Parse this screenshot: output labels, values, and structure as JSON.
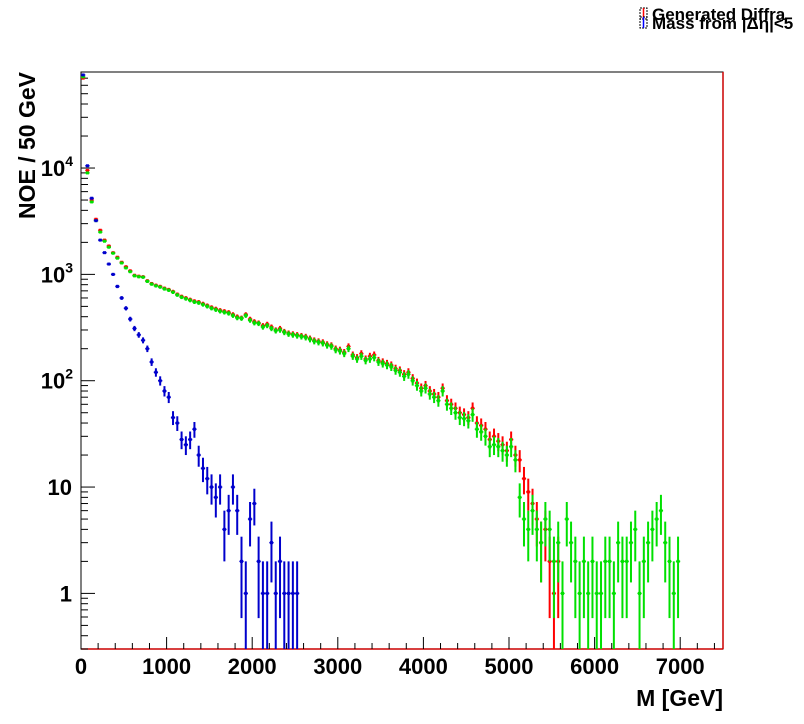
{
  "chart_data": {
    "type": "scatter",
    "title": "",
    "xlabel": "M [GeV]",
    "ylabel": "NOE / 50 GeV",
    "xlim": [
      0,
      7500
    ],
    "ylim": [
      0.3,
      80000
    ],
    "y_scale": "log",
    "grid": false,
    "legend_position": "top-right",
    "x_ticks": [
      {
        "v": 0,
        "label": "0"
      },
      {
        "v": 1000,
        "label": "1000"
      },
      {
        "v": 2000,
        "label": "2000"
      },
      {
        "v": 3000,
        "label": "3000"
      },
      {
        "v": 4000,
        "label": "4000"
      },
      {
        "v": 5000,
        "label": "5000"
      },
      {
        "v": 6000,
        "label": "6000"
      },
      {
        "v": 7000,
        "label": "7000"
      }
    ],
    "y_ticks": [
      {
        "v": 1,
        "base": "1",
        "exp": ""
      },
      {
        "v": 10,
        "base": "10",
        "exp": ""
      },
      {
        "v": 100,
        "base": "10",
        "exp": "2"
      },
      {
        "v": 1000,
        "base": "10",
        "exp": "3"
      },
      {
        "v": 10000,
        "base": "10",
        "exp": "4"
      }
    ],
    "legend": [
      {
        "label": "Generated Diffra",
        "color": "#ff0000"
      },
      {
        "label": "Mass from |Δη|<5",
        "color": "#0000ff"
      }
    ],
    "series": [
      {
        "color": "#ff0000",
        "x": [
          25,
          75,
          125,
          175,
          225,
          275,
          325,
          375,
          425,
          475,
          525,
          575,
          625,
          675,
          725,
          775,
          825,
          875,
          925,
          975,
          1025,
          1075,
          1125,
          1175,
          1225,
          1275,
          1325,
          1375,
          1425,
          1475,
          1525,
          1575,
          1625,
          1675,
          1725,
          1775,
          1825,
          1875,
          1925,
          1975,
          2025,
          2075,
          2125,
          2175,
          2225,
          2275,
          2325,
          2375,
          2425,
          2475,
          2525,
          2575,
          2625,
          2675,
          2725,
          2775,
          2825,
          2875,
          2925,
          2975,
          3025,
          3075,
          3125,
          3175,
          3225,
          3275,
          3325,
          3375,
          3425,
          3475,
          3525,
          3575,
          3625,
          3675,
          3725,
          3775,
          3825,
          3875,
          3925,
          3975,
          4025,
          4075,
          4125,
          4175,
          4225,
          4275,
          4325,
          4375,
          4425,
          4475,
          4525,
          4575,
          4625,
          4675,
          4725,
          4775,
          4825,
          4875,
          4925,
          4975,
          5025,
          5075,
          5125,
          5175,
          5225,
          5275,
          5325,
          5375,
          5425,
          5475,
          5525,
          5575
        ],
        "y": [
          70000,
          9500,
          5000,
          3300,
          2600,
          2100,
          1850,
          1600,
          1450,
          1300,
          1180,
          1080,
          980,
          960,
          950,
          870,
          820,
          790,
          770,
          740,
          720,
          690,
          650,
          620,
          600,
          580,
          560,
          550,
          530,
          510,
          490,
          475,
          460,
          450,
          440,
          420,
          400,
          390,
          420,
          380,
          360,
          350,
          330,
          340,
          320,
          300,
          310,
          290,
          280,
          275,
          270,
          265,
          260,
          250,
          240,
          235,
          230,
          220,
          215,
          200,
          195,
          185,
          210,
          175,
          165,
          180,
          160,
          170,
          175,
          155,
          150,
          145,
          140,
          130,
          125,
          115,
          120,
          105,
          95,
          85,
          90,
          80,
          75,
          70,
          85,
          65,
          60,
          55,
          50,
          48,
          45,
          55,
          40,
          38,
          35,
          28,
          30,
          27,
          25,
          22,
          28,
          20,
          18,
          12,
          9,
          7,
          5,
          3,
          4,
          2,
          1,
          2
        ]
      },
      {
        "color": "#00e000",
        "x": [
          25,
          75,
          125,
          175,
          225,
          275,
          325,
          375,
          425,
          475,
          525,
          575,
          625,
          675,
          725,
          775,
          825,
          875,
          925,
          975,
          1025,
          1075,
          1125,
          1175,
          1225,
          1275,
          1325,
          1375,
          1425,
          1475,
          1525,
          1575,
          1625,
          1675,
          1725,
          1775,
          1825,
          1875,
          1925,
          1975,
          2025,
          2075,
          2125,
          2175,
          2225,
          2275,
          2325,
          2375,
          2425,
          2475,
          2525,
          2575,
          2625,
          2675,
          2725,
          2775,
          2825,
          2875,
          2925,
          2975,
          3025,
          3075,
          3125,
          3175,
          3225,
          3275,
          3325,
          3375,
          3425,
          3475,
          3525,
          3575,
          3625,
          3675,
          3725,
          3775,
          3825,
          3875,
          3925,
          3975,
          4025,
          4075,
          4125,
          4175,
          4225,
          4275,
          4325,
          4375,
          4425,
          4475,
          4525,
          4575,
          4625,
          4675,
          4725,
          4775,
          4825,
          4875,
          4925,
          4975,
          5025,
          5075,
          5125,
          5175,
          5225,
          5275,
          5325,
          5375,
          5425,
          5475,
          5525,
          5575,
          5625,
          5675,
          5725,
          5775,
          5825,
          5875,
          5925,
          5975,
          6025,
          6075,
          6125,
          6175,
          6225,
          6275,
          6325,
          6375,
          6425,
          6475,
          6525,
          6575,
          6625,
          6675,
          6725,
          6775,
          6825,
          6875,
          6925,
          6975
        ],
        "y": [
          72000,
          9000,
          4800,
          3200,
          2500,
          2050,
          1800,
          1580,
          1420,
          1280,
          1150,
          1060,
          970,
          950,
          940,
          860,
          810,
          780,
          760,
          730,
          710,
          680,
          640,
          610,
          590,
          570,
          550,
          540,
          520,
          500,
          480,
          465,
          450,
          440,
          430,
          410,
          390,
          385,
          410,
          370,
          350,
          345,
          320,
          330,
          310,
          295,
          300,
          285,
          275,
          270,
          265,
          260,
          255,
          245,
          235,
          230,
          225,
          215,
          210,
          195,
          190,
          180,
          200,
          170,
          160,
          170,
          155,
          160,
          165,
          150,
          145,
          140,
          135,
          125,
          120,
          110,
          115,
          100,
          90,
          80,
          85,
          75,
          70,
          65,
          80,
          60,
          55,
          50,
          45,
          44,
          42,
          48,
          35,
          33,
          30,
          24,
          25,
          24,
          22,
          20,
          24,
          18,
          8,
          5,
          4,
          6,
          4,
          3,
          5,
          4,
          2,
          3,
          1,
          5,
          3,
          2,
          1,
          2,
          1,
          2,
          1,
          1,
          2,
          2,
          1,
          3,
          2,
          2,
          3,
          4,
          1,
          2,
          3,
          4,
          5,
          6,
          3,
          2,
          1,
          2
        ]
      },
      {
        "color": "#0000cc",
        "x": [
          25,
          75,
          125,
          175,
          225,
          275,
          325,
          375,
          425,
          475,
          525,
          575,
          625,
          675,
          725,
          775,
          825,
          875,
          925,
          975,
          1025,
          1075,
          1125,
          1175,
          1225,
          1275,
          1325,
          1375,
          1425,
          1475,
          1525,
          1575,
          1625,
          1675,
          1725,
          1775,
          1825,
          1875,
          1925,
          1975,
          2025,
          2075,
          2125,
          2175,
          2225,
          2275,
          2325,
          2375,
          2425,
          2475,
          2525
        ],
        "y": [
          75000,
          10500,
          5200,
          3200,
          2100,
          1600,
          1250,
          1000,
          770,
          600,
          480,
          380,
          310,
          270,
          240,
          200,
          150,
          120,
          100,
          80,
          70,
          45,
          40,
          28,
          25,
          28,
          35,
          20,
          15,
          12,
          10,
          8,
          10,
          4,
          6,
          10,
          6,
          2,
          1,
          5,
          7,
          2,
          1,
          1,
          3,
          1,
          2,
          1,
          1,
          1,
          1
        ]
      }
    ]
  }
}
